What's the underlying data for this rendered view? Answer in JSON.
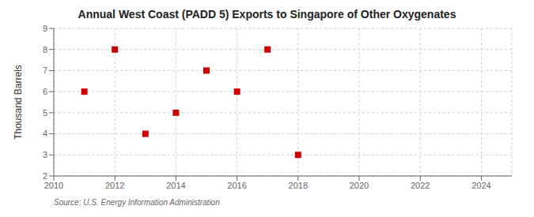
{
  "chart_data": {
    "type": "scatter",
    "title": "Annual West Coast (PADD 5) Exports to Singapore of Other Oxygenates",
    "ylabel": "Thousand Barrels",
    "source": "Source: U.S. Energy Information Administration",
    "x": [
      2011,
      2012,
      2013,
      2014,
      2015,
      2016,
      2017,
      2018
    ],
    "values": [
      6,
      8,
      4,
      5,
      7,
      6,
      8,
      3
    ],
    "color": "#cc0000",
    "marker": "square",
    "xlim": [
      2010,
      2025
    ],
    "ylim": [
      2,
      9
    ],
    "xticks": [
      2010,
      2012,
      2014,
      2016,
      2018,
      2020,
      2022,
      2024
    ],
    "yticks": [
      2,
      3,
      4,
      5,
      6,
      7,
      8,
      9
    ],
    "grid": true
  }
}
